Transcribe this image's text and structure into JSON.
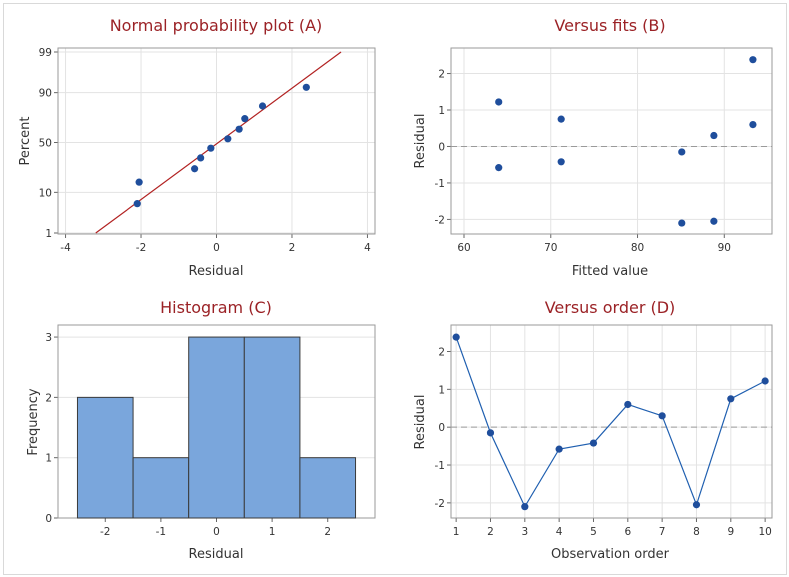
{
  "chart_data": [
    {
      "id": "A",
      "type": "scatter",
      "title": "Normal probability plot (A)",
      "xlabel": "Residual",
      "ylabel": "Percent",
      "xlim": [
        -4.2,
        4.2
      ],
      "xticks": [
        -4,
        -2,
        0,
        2,
        4
      ],
      "yticks": [
        1,
        10,
        50,
        90,
        99
      ],
      "points": [
        {
          "x": -2.1,
          "y": 5.8
        },
        {
          "x": -2.05,
          "y": 15.4
        },
        {
          "x": -0.58,
          "y": 25
        },
        {
          "x": -0.42,
          "y": 34.6
        },
        {
          "x": -0.15,
          "y": 44.2
        },
        {
          "x": 0.3,
          "y": 53.8
        },
        {
          "x": 0.6,
          "y": 63.4
        },
        {
          "x": 0.75,
          "y": 73
        },
        {
          "x": 1.22,
          "y": 82.6
        },
        {
          "x": 2.38,
          "y": 92.2
        }
      ],
      "fit_line": {
        "from": [
          -3.2,
          1
        ],
        "to": [
          3.3,
          99
        ],
        "color": "#b22222"
      },
      "marker_color": "#1f4e9c"
    },
    {
      "id": "B",
      "type": "scatter",
      "title": "Versus fits (B)",
      "xlabel": "Fitted value",
      "ylabel": "Residual",
      "xlim": [
        58.5,
        95.5
      ],
      "ylim": [
        -2.4,
        2.7
      ],
      "xticks": [
        60,
        70,
        80,
        90
      ],
      "yticks": [
        -2,
        -1,
        0,
        1,
        2
      ],
      "points": [
        {
          "x": 64,
          "y": 1.22
        },
        {
          "x": 64,
          "y": -0.58
        },
        {
          "x": 71.2,
          "y": 0.75
        },
        {
          "x": 71.2,
          "y": -0.42
        },
        {
          "x": 85.1,
          "y": -0.15
        },
        {
          "x": 85.1,
          "y": -2.1
        },
        {
          "x": 88.8,
          "y": 0.3
        },
        {
          "x": 88.8,
          "y": -2.05
        },
        {
          "x": 93.3,
          "y": 2.38
        },
        {
          "x": 93.3,
          "y": 0.6
        }
      ],
      "reference_line": 0,
      "marker_color": "#1f4e9c"
    },
    {
      "id": "C",
      "type": "bar",
      "title": "Histogram (C)",
      "xlabel": "Residual",
      "ylabel": "Frequency",
      "xlim": [
        -2.85,
        2.85
      ],
      "ylim": [
        0,
        3.2
      ],
      "xticks": [
        -2,
        -1,
        0,
        1,
        2
      ],
      "yticks": [
        0,
        1,
        2,
        3
      ],
      "categories": [
        "-2",
        "-1",
        "0",
        "1",
        "2"
      ],
      "values": [
        2,
        1,
        3,
        3,
        1
      ],
      "bar_color": "#7aa6dc"
    },
    {
      "id": "D",
      "type": "line",
      "title": "Versus order (D)",
      "xlabel": "Observation order",
      "ylabel": "Residual",
      "xlim": [
        0.85,
        10.2
      ],
      "ylim": [
        -2.4,
        2.7
      ],
      "xticks": [
        1,
        2,
        3,
        4,
        5,
        6,
        7,
        8,
        9,
        10
      ],
      "yticks": [
        -2,
        -1,
        0,
        1,
        2
      ],
      "x": [
        1,
        2,
        3,
        4,
        5,
        6,
        7,
        8,
        9,
        10
      ],
      "values": [
        2.38,
        -0.15,
        -2.1,
        -0.58,
        -0.42,
        0.6,
        0.3,
        -2.05,
        0.75,
        1.22
      ],
      "reference_line": 0,
      "line_color": "#1f5fb0"
    }
  ]
}
